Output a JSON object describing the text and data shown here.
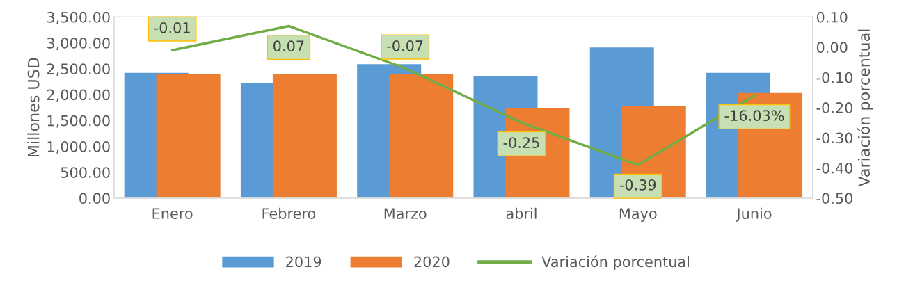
{
  "chart_data": {
    "type": "bar",
    "categories": [
      "Enero",
      "Febrero",
      "Marzo",
      "abril",
      "Mayo",
      "Junio"
    ],
    "series": [
      {
        "name": "2019",
        "color": "#5b9bd5",
        "values": [
          2420,
          2220,
          2590,
          2350,
          2910,
          2420
        ]
      },
      {
        "name": "2020",
        "color": "#ed7d31",
        "values": [
          2390,
          2390,
          2390,
          1740,
          1780,
          2030
        ]
      },
      {
        "name": "Variación porcentual",
        "type": "line",
        "axis": "y2",
        "color": "#70ad47",
        "values": [
          -0.01,
          0.07,
          -0.07,
          -0.25,
          -0.39,
          -0.1603
        ],
        "value_labels": [
          "-0.01",
          "0.07",
          "-0.07",
          "-0.25",
          "-0.39",
          "-16.03%"
        ]
      }
    ],
    "ylabel": "Millones USD",
    "y2label": "Variación porcentual",
    "ylim": [
      0,
      3500
    ],
    "yticks": [
      {
        "value": 0,
        "label": "0.00"
      },
      {
        "value": 500,
        "label": "500.00"
      },
      {
        "value": 1000,
        "label": "1,000.00"
      },
      {
        "value": 1500,
        "label": "1,500.00"
      },
      {
        "value": 2000,
        "label": "2,000.00"
      },
      {
        "value": 2500,
        "label": "2,500.00"
      },
      {
        "value": 3000,
        "label": "3,000.00"
      },
      {
        "value": 3500,
        "label": "3,500.00"
      }
    ],
    "y2lim": [
      -0.5,
      0.1
    ],
    "y2ticks": [
      {
        "value": -0.5,
        "label": "-0.50"
      },
      {
        "value": -0.4,
        "label": "-0.40"
      },
      {
        "value": -0.3,
        "label": "-0.30"
      },
      {
        "value": -0.2,
        "label": "-0.20"
      },
      {
        "value": -0.1,
        "label": "-0.10"
      },
      {
        "value": 0,
        "label": "0.00"
      },
      {
        "value": 0.1,
        "label": "0.10"
      }
    ],
    "legend": "bottom",
    "grid": false
  }
}
